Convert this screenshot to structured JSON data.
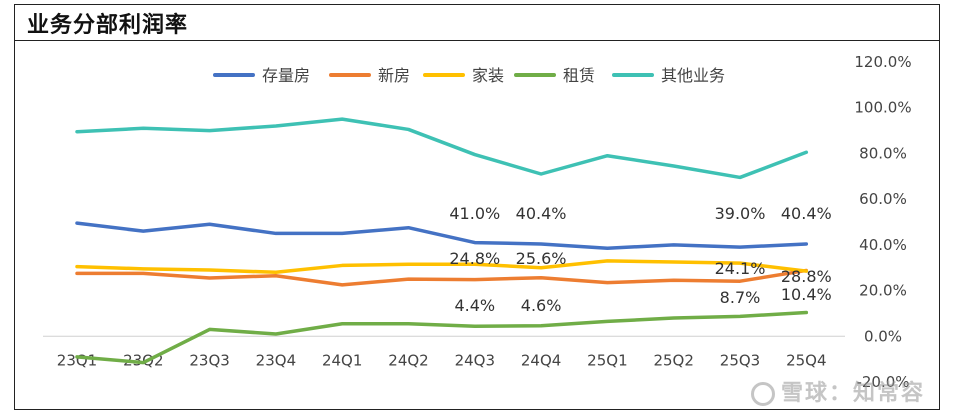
{
  "title": "业务分部利润率",
  "watermark": "雪球：知常容",
  "chart_data": {
    "type": "line",
    "title": "业务分部利润率",
    "categories": [
      "23Q1",
      "23Q2",
      "23Q3",
      "23Q4",
      "24Q1",
      "24Q2",
      "24Q3",
      "24Q4",
      "25Q1",
      "25Q2",
      "25Q3",
      "25Q4"
    ],
    "y_axis_position": "right",
    "ylim": [
      -20,
      120
    ],
    "y_ticks": [
      "120.0%",
      "100.0%",
      "80.0%",
      "60.0%",
      "40.0%",
      "20.0%",
      "0.0%",
      "-20.0%"
    ],
    "y_tick_values": [
      120,
      100,
      80,
      60,
      40,
      20,
      0,
      -20
    ],
    "grid": false,
    "legend_position": "top",
    "series": [
      {
        "name": "存量房",
        "color": "#4472C4",
        "values": [
          49.5,
          46,
          49,
          45,
          45,
          47.5,
          41.0,
          40.4,
          38.5,
          40,
          39.0,
          40.4
        ]
      },
      {
        "name": "新房",
        "color": "#ED7D31",
        "values": [
          27.5,
          27.5,
          25.5,
          26.5,
          22.5,
          25,
          24.8,
          25.6,
          23.5,
          24.5,
          24.1,
          28.8
        ]
      },
      {
        "name": "家装",
        "color": "#FFC000",
        "values": [
          30.5,
          29.5,
          29,
          28,
          31,
          31.5,
          31.5,
          30,
          33,
          32.5,
          32,
          28.5
        ]
      },
      {
        "name": "租赁",
        "color": "#70AD47",
        "values": [
          -9,
          -11.5,
          3,
          1,
          5.5,
          5.5,
          4.4,
          4.6,
          6.5,
          8,
          8.7,
          10.4
        ]
      },
      {
        "name": "其他业务",
        "color": "#3EC1B4",
        "values": [
          89.5,
          91,
          90,
          92,
          95,
          90.5,
          79.5,
          71,
          79,
          74.5,
          69.5,
          80.5
        ]
      }
    ],
    "data_labels": [
      {
        "category": "24Q3",
        "text": "41.0%"
      },
      {
        "category": "24Q4",
        "text": "40.4%"
      },
      {
        "category": "25Q3",
        "text": "39.0%"
      },
      {
        "category": "25Q4",
        "text": "40.4%"
      },
      {
        "category": "24Q3",
        "text": "24.8%"
      },
      {
        "category": "24Q4",
        "text": "25.6%"
      },
      {
        "category": "25Q3",
        "text": "24.1%"
      },
      {
        "category": "25Q4",
        "text": "28.8%"
      },
      {
        "category": "24Q3",
        "text": "4.4%"
      },
      {
        "category": "24Q4",
        "text": "4.6%"
      },
      {
        "category": "25Q3",
        "text": "8.7%"
      },
      {
        "category": "25Q4",
        "text": "10.4%"
      }
    ]
  }
}
